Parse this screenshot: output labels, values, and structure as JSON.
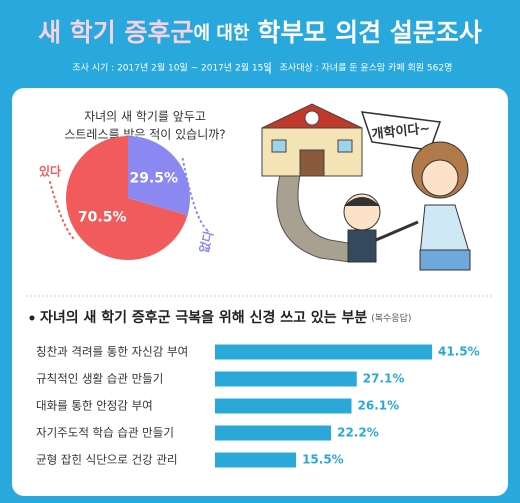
{
  "header": {
    "title_highlight": "새 학기 증후군",
    "title_middle": "에 대한",
    "title_rest": "학부모 의견 설문조사",
    "period": "조사 시기 : 2017년 2월 10일 ~ 2017년 2월 15일",
    "target": "조사대상 : 자녀를 둔 윤스맘 카페 회원 562명"
  },
  "illustration": {
    "bubble": "개학이다~"
  },
  "chart_data": [
    {
      "type": "pie",
      "title_lines": [
        "자녀의 새 학기를 앞두고",
        "스트레스를 받은 적이 있습니까?"
      ],
      "categories": [
        "있다",
        "없다"
      ],
      "values": [
        70.5,
        29.5
      ],
      "value_labels": [
        "70.5%",
        "29.5%"
      ],
      "colors": [
        "#f25b5b",
        "#8b88f2"
      ]
    },
    {
      "type": "hbar",
      "title": "자녀의 새 학기 증후군 극복을 위해 신경 쓰고 있는 부분",
      "note": "(복수응답)",
      "categories": [
        "칭찬과 격려를 통한 자신감 부여",
        "규칙적인 생활 습관 만들기",
        "대화를 통한 안정감 부여",
        "자기주도적 학습 습관 만들기",
        "균형 잡힌 식단으로 건강 관리"
      ],
      "values": [
        41.5,
        27.1,
        26.1,
        22.2,
        15.5
      ],
      "value_labels": [
        "41.5%",
        "27.1%",
        "26.1%",
        "22.2%",
        "15.5%"
      ],
      "color": "#2aa8d8"
    }
  ]
}
